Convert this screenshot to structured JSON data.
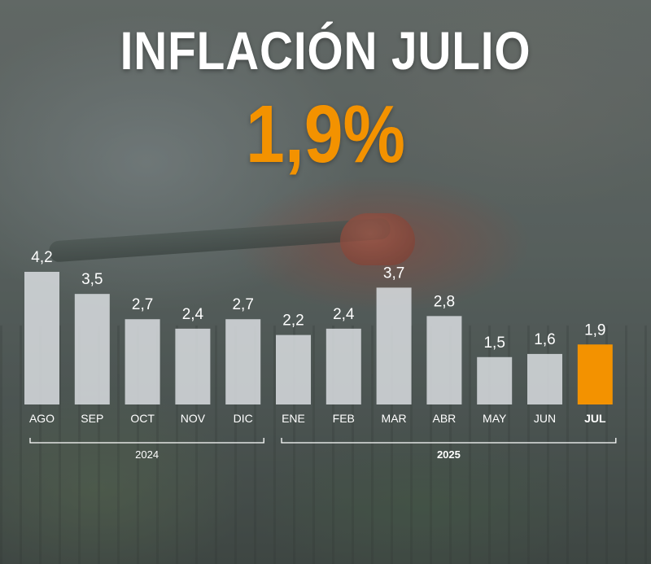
{
  "title": "INFLACIÓN JULIO",
  "headline_value": "1,9%",
  "colors": {
    "accent": "#f39200",
    "bar": "#d9dde0",
    "text": "#ffffff"
  },
  "chart_data": {
    "type": "bar",
    "title": "INFLACIÓN JULIO",
    "categories": [
      "AGO",
      "SEP",
      "OCT",
      "NOV",
      "DIC",
      "ENE",
      "FEB",
      "MAR",
      "ABR",
      "MAY",
      "JUN",
      "JUL"
    ],
    "values": [
      4.2,
      3.5,
      2.7,
      2.4,
      2.7,
      2.2,
      2.4,
      3.7,
      2.8,
      1.5,
      1.6,
      1.9
    ],
    "value_labels": [
      "4,2",
      "3,5",
      "2,7",
      "2,4",
      "2,7",
      "2,2",
      "2,4",
      "3,7",
      "2,8",
      "1,5",
      "1,6",
      "1,9"
    ],
    "highlight_index": 11,
    "groups": [
      {
        "label": "2024",
        "start": 0,
        "end": 4,
        "bold": false
      },
      {
        "label": "2025",
        "start": 5,
        "end": 11,
        "bold": true
      }
    ],
    "xlabel": "",
    "ylabel": "",
    "ylim": [
      0,
      4.6
    ]
  }
}
